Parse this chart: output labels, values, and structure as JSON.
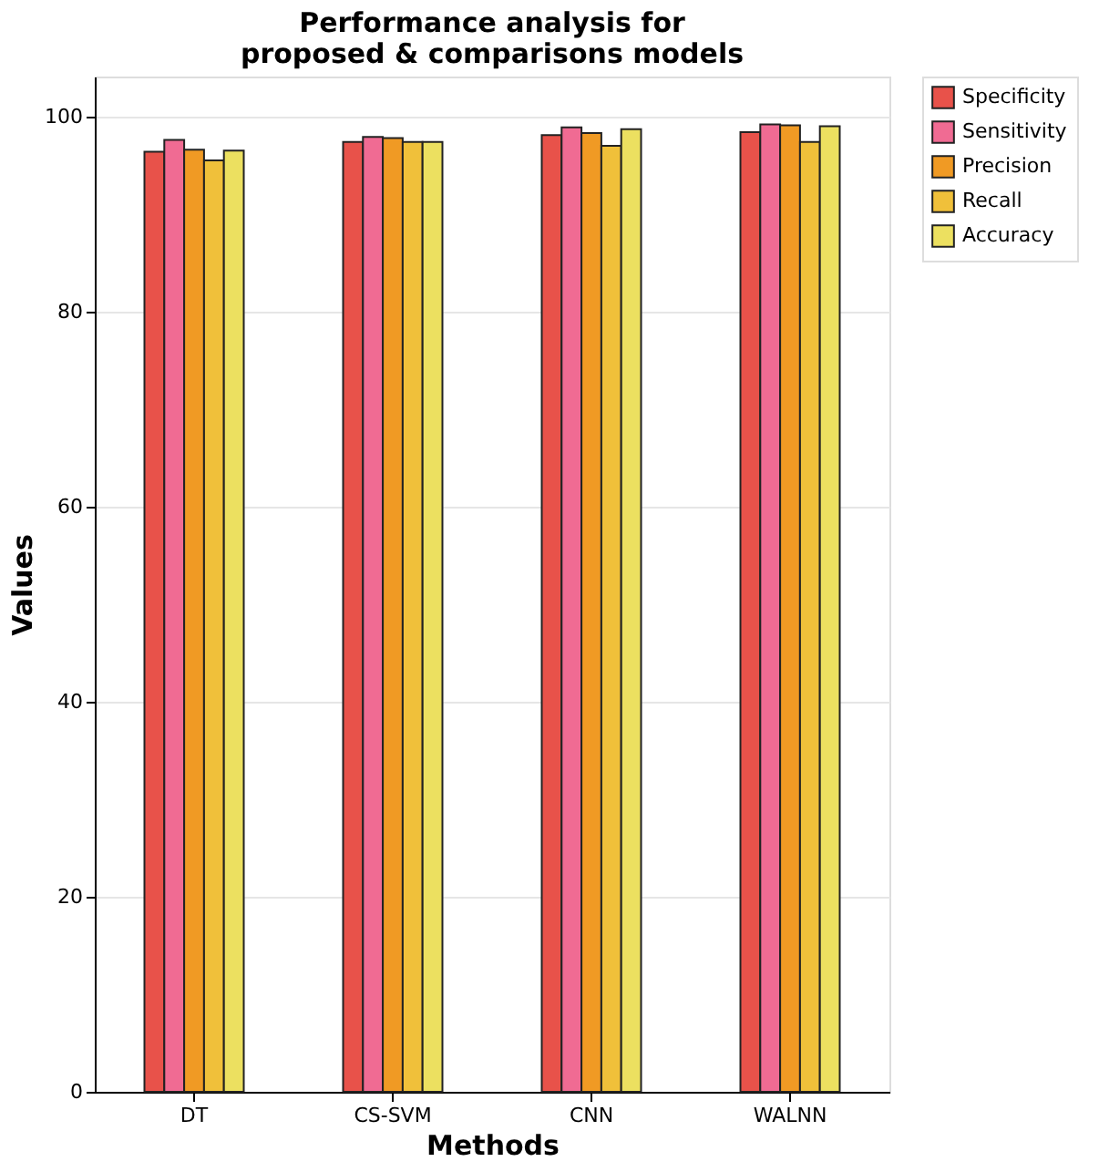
{
  "chart_data": {
    "type": "bar",
    "title": "Performance analysis for\nproposed & comparisons models",
    "xlabel": "Methods",
    "ylabel": "Values",
    "categories": [
      "DT",
      "CS-SVM",
      "CNN",
      "WALNN"
    ],
    "series": [
      {
        "name": "Specificity",
        "color": "#e8524a",
        "values": [
          96.4,
          97.4,
          98.1,
          98.4
        ]
      },
      {
        "name": "Sensitivity",
        "color": "#f06b93",
        "values": [
          97.6,
          97.9,
          98.9,
          99.2
        ]
      },
      {
        "name": "Precision",
        "color": "#f09a24",
        "values": [
          96.6,
          97.8,
          98.3,
          99.1
        ]
      },
      {
        "name": "Recall",
        "color": "#f0c03a",
        "values": [
          95.5,
          97.4,
          97.0,
          97.4
        ]
      },
      {
        "name": "Accuracy",
        "color": "#ece060",
        "values": [
          96.5,
          97.4,
          98.7,
          99.0
        ]
      }
    ],
    "ylim": [
      0,
      104.1
    ],
    "yticks": [
      0,
      20,
      40,
      60,
      80,
      100
    ],
    "grid": "y",
    "legend": "right"
  }
}
